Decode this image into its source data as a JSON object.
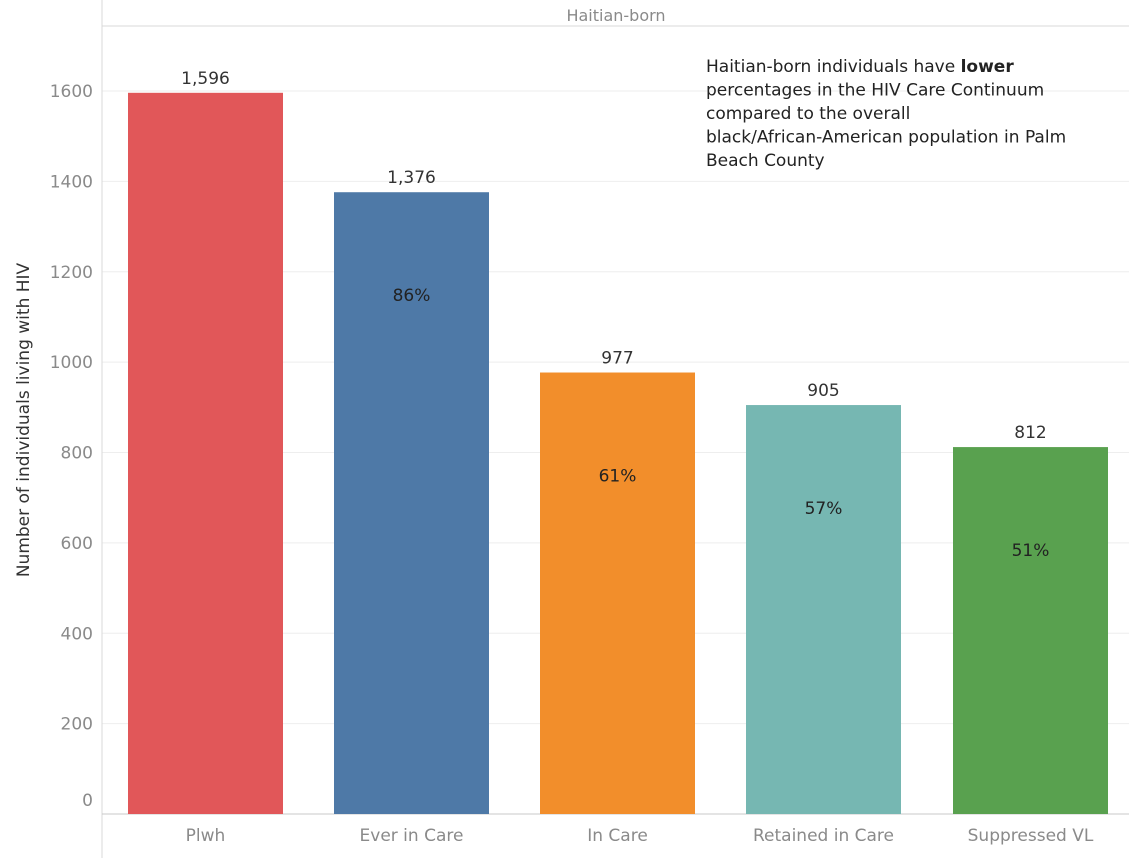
{
  "chart_data": {
    "type": "bar",
    "facet": "Haitian-born",
    "categories": [
      "Plwh",
      "Ever in Care",
      "In Care",
      "Retained in Care",
      "Suppressed VL"
    ],
    "values": [
      1596,
      1376,
      977,
      905,
      812
    ],
    "value_labels": [
      "1,596",
      "1,376",
      "977",
      "905",
      "812"
    ],
    "percent_labels": [
      "",
      "86%",
      "61%",
      "57%",
      "51%"
    ],
    "colors": [
      "#e15759",
      "#4e79a7",
      "#f28e2b",
      "#76b7b2",
      "#59a14f"
    ],
    "ylabel": "Number of individuals living with HIV",
    "xlabel": "",
    "ylim": [
      0,
      1750
    ],
    "yticks": [
      0,
      200,
      400,
      600,
      800,
      1000,
      1200,
      1400,
      1600
    ],
    "grid": true,
    "annotation": {
      "lines": [
        [
          "Haitian-born individuals have ",
          "lower"
        ],
        [
          "percentages in the HIV Care Continuum"
        ],
        [
          "compared to the overall"
        ],
        [
          "black/African-American population in Palm"
        ],
        [
          "Beach County"
        ]
      ]
    }
  }
}
